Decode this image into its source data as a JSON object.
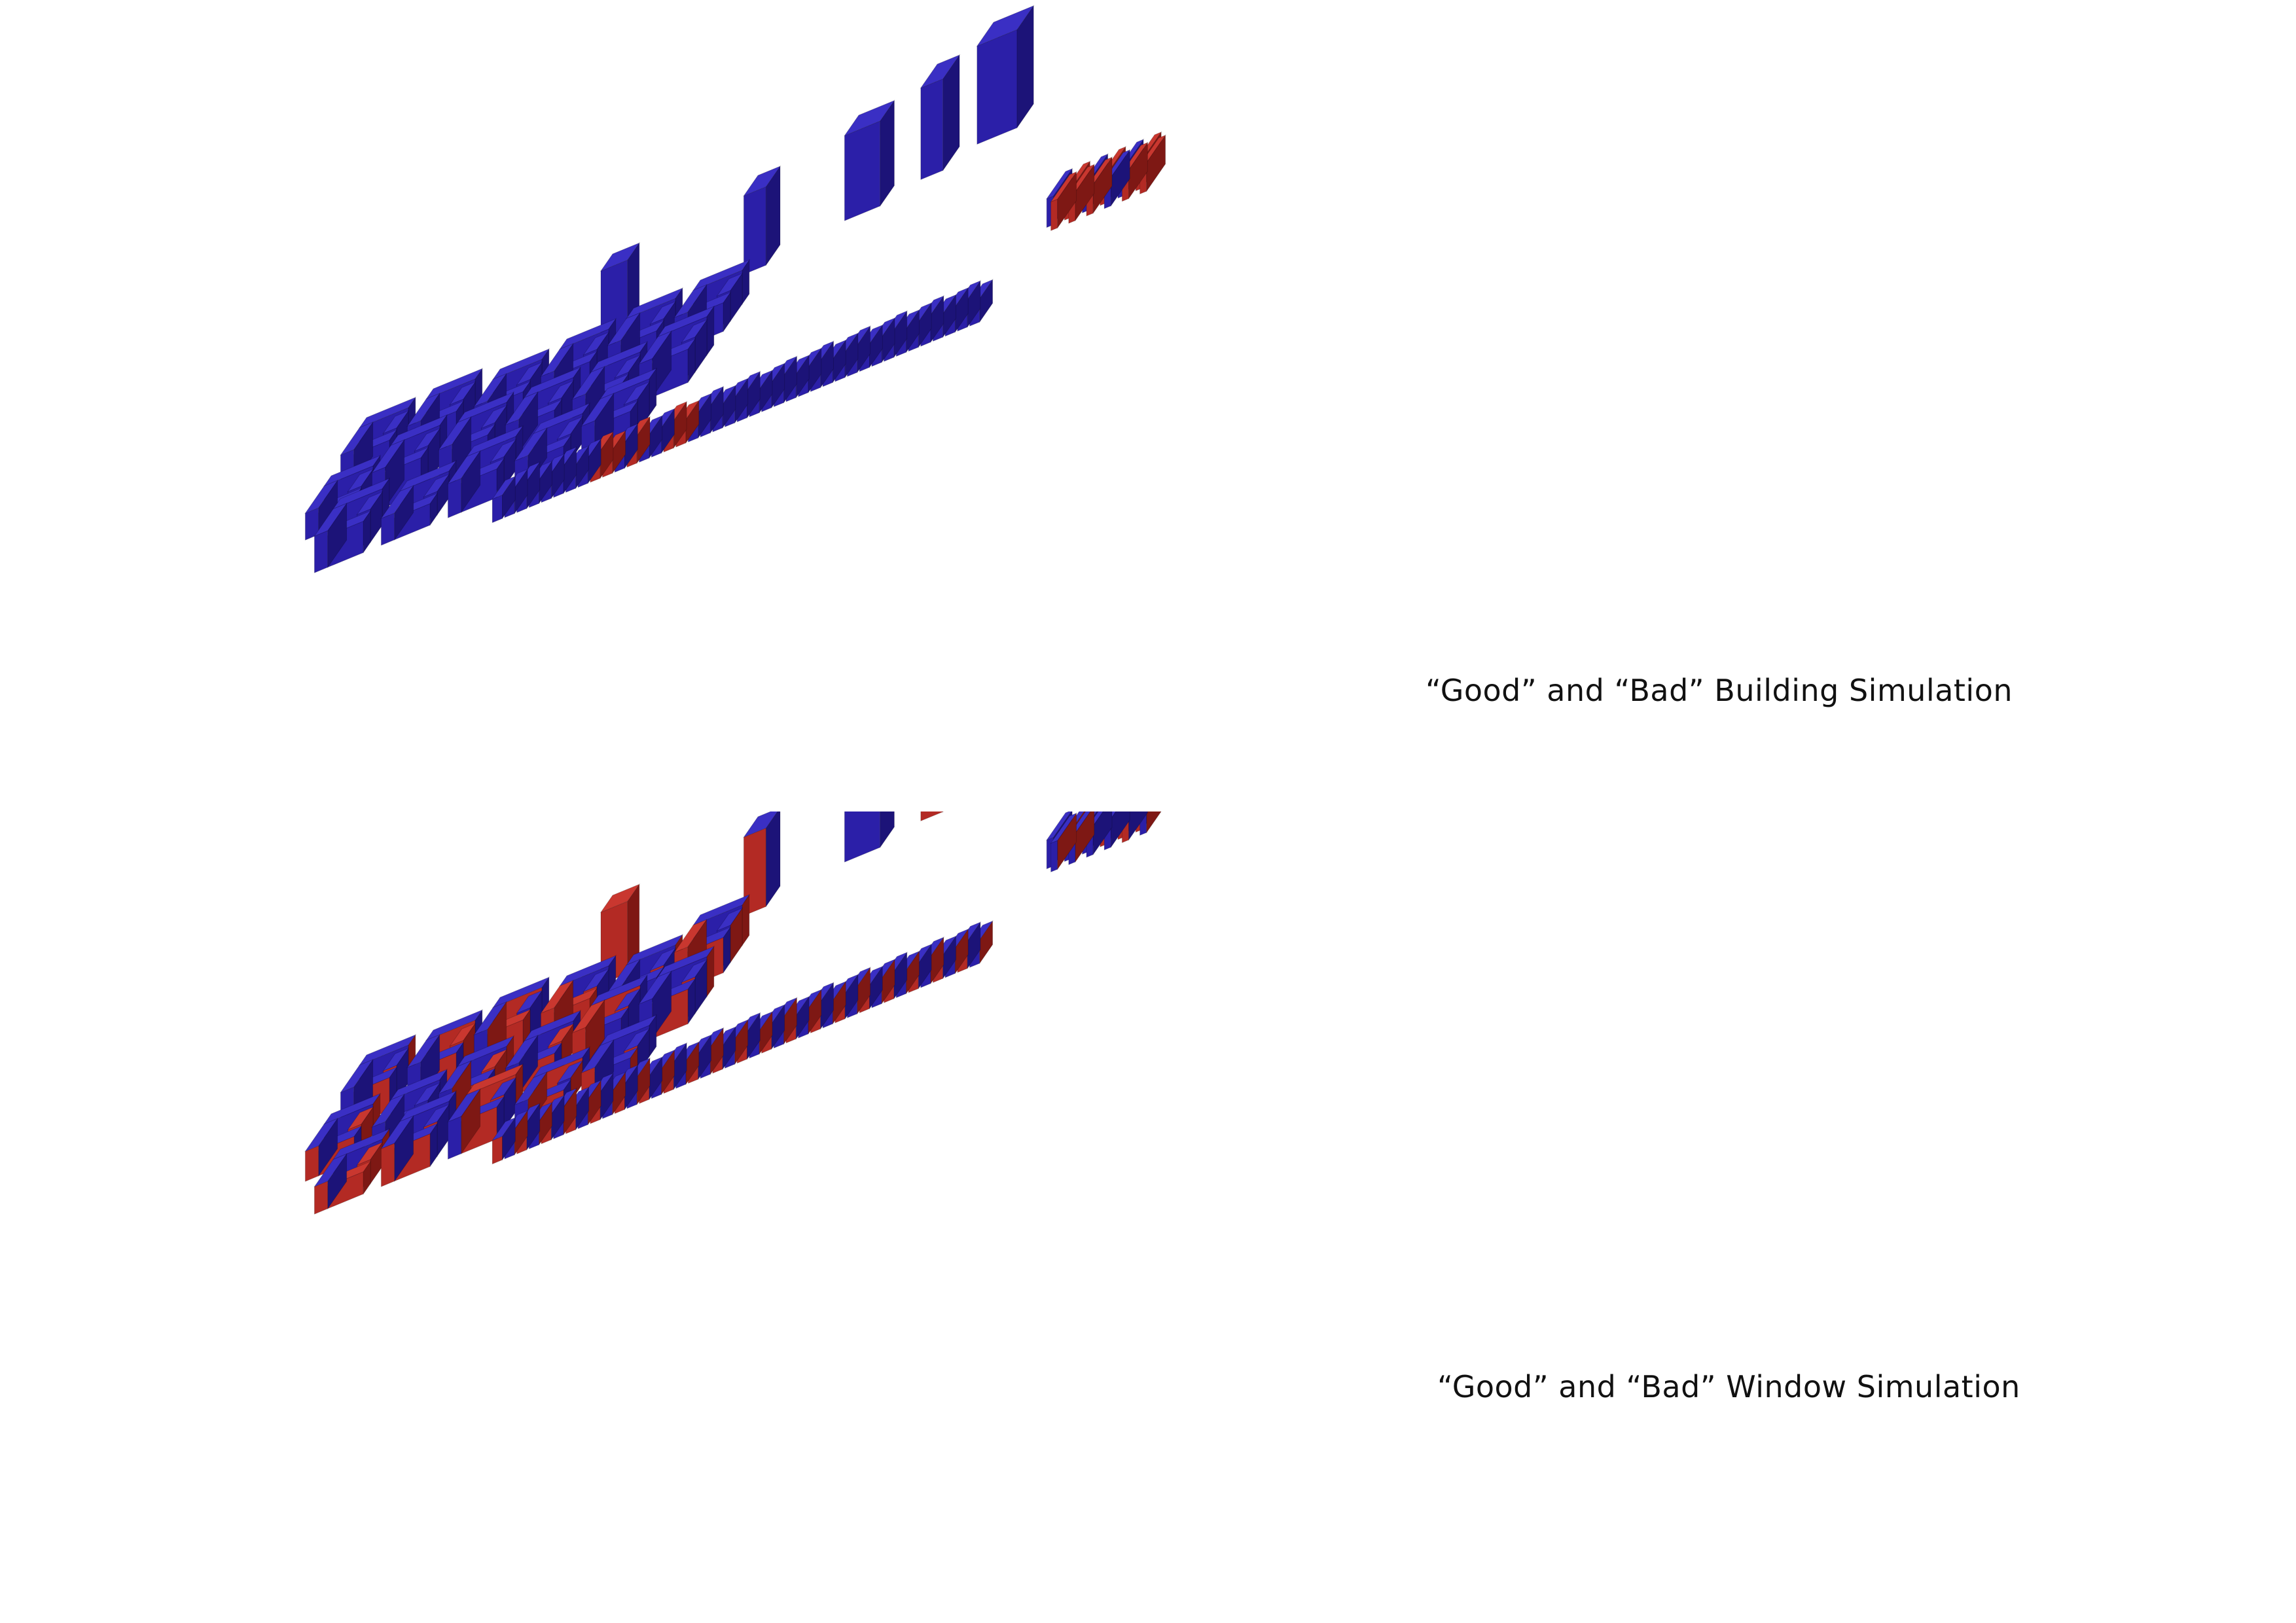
{
  "colors": {
    "good": "#2b1fa8",
    "good_top": "#3a2fc4",
    "good_side": "#1c1378",
    "bad": "#b32a24",
    "bad_top": "#c9372f",
    "bad_side": "#7e1814",
    "background": "#ffffff"
  },
  "panels": [
    {
      "id": "building-simulation",
      "caption": "“Good” and “Bad” Building Simulation",
      "legend_meaning": {
        "blue": "good",
        "red": "bad"
      }
    },
    {
      "id": "window-simulation",
      "caption": "“Good” and “Bad” Window Simulation",
      "legend_meaning": {
        "blue": "good",
        "red": "bad"
      }
    }
  ]
}
